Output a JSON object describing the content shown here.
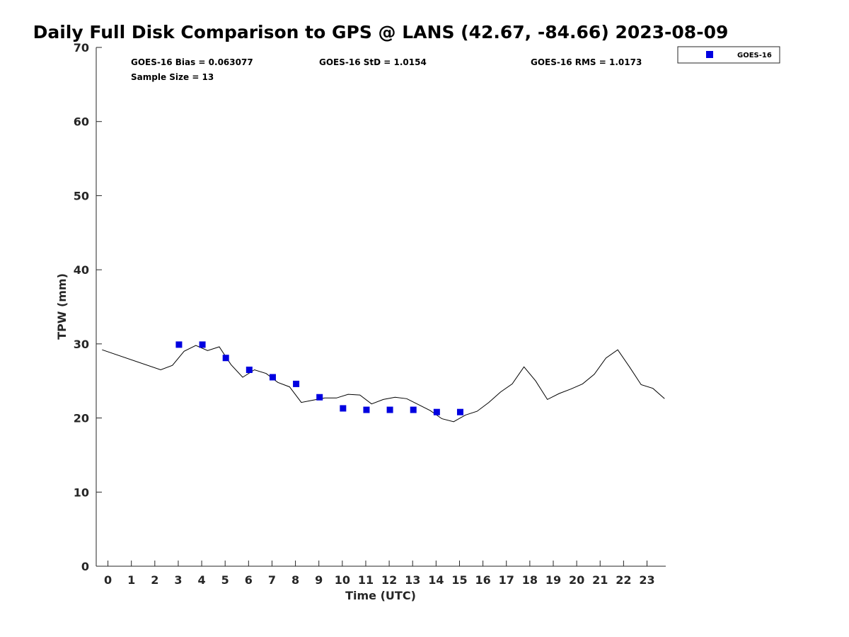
{
  "chart_data": {
    "type": "line",
    "title": "Daily Full Disk Comparison to GPS @ LANS (42.67, -84.66) 2023-08-09",
    "xlabel": "Time (UTC)",
    "ylabel": "TPW (mm)",
    "xlim": [
      -0.5,
      23.8
    ],
    "ylim": [
      0,
      70
    ],
    "x_ticks": [
      0,
      1,
      2,
      3,
      4,
      5,
      6,
      7,
      8,
      9,
      10,
      11,
      12,
      13,
      14,
      15,
      16,
      17,
      18,
      19,
      20,
      21,
      22,
      23
    ],
    "y_ticks": [
      0,
      10,
      20,
      30,
      40,
      50,
      60,
      70
    ],
    "grid": false,
    "legend_position": "top-right",
    "stats": {
      "bias": "GOES-16 Bias = 0.063077",
      "std": "GOES-16 StD = 1.0154",
      "rms": "GOES-16 RMS = 1.0173",
      "sample_size": "Sample Size = 13"
    },
    "series": [
      {
        "kind": "line",
        "color": "#000000",
        "x": [
          -0.25,
          2.25,
          2.75,
          3.25,
          3.75,
          4.25,
          4.75,
          5.25,
          5.75,
          6.25,
          6.75,
          7.25,
          7.75,
          8.25,
          8.75,
          9.25,
          9.75,
          10.25,
          10.75,
          11.25,
          11.75,
          12.25,
          12.75,
          13.25,
          13.75,
          14.25,
          14.75,
          15.25,
          15.75,
          16.25,
          16.75,
          17.25,
          17.75,
          18.25,
          18.75,
          19.25,
          19.75,
          20.25,
          20.75,
          21.25,
          21.75,
          22.25,
          22.75,
          23.25,
          23.75
        ],
        "y": [
          29.2,
          26.5,
          27.1,
          29.0,
          29.8,
          29.1,
          29.6,
          27.2,
          25.5,
          26.5,
          26.0,
          24.8,
          24.2,
          22.1,
          22.4,
          22.7,
          22.7,
          23.2,
          23.1,
          21.9,
          22.5,
          22.8,
          22.6,
          21.8,
          21.0,
          19.9,
          19.5,
          20.4,
          20.9,
          22.1,
          23.5,
          24.6,
          26.9,
          25.0,
          22.5,
          23.3,
          23.9,
          24.6,
          25.9,
          28.1,
          29.2,
          26.9,
          24.5,
          24.0,
          22.6
        ]
      },
      {
        "name": "GOES-16",
        "kind": "scatter",
        "color": "#0000e0",
        "x": [
          3.03,
          4.03,
          5.03,
          6.03,
          7.03,
          8.03,
          9.03,
          10.03,
          11.03,
          12.03,
          13.03,
          14.03,
          15.03
        ],
        "y": [
          29.9,
          29.9,
          28.1,
          26.5,
          25.5,
          24.6,
          22.8,
          21.3,
          21.1,
          21.1,
          21.1,
          20.8,
          20.8
        ]
      }
    ]
  }
}
